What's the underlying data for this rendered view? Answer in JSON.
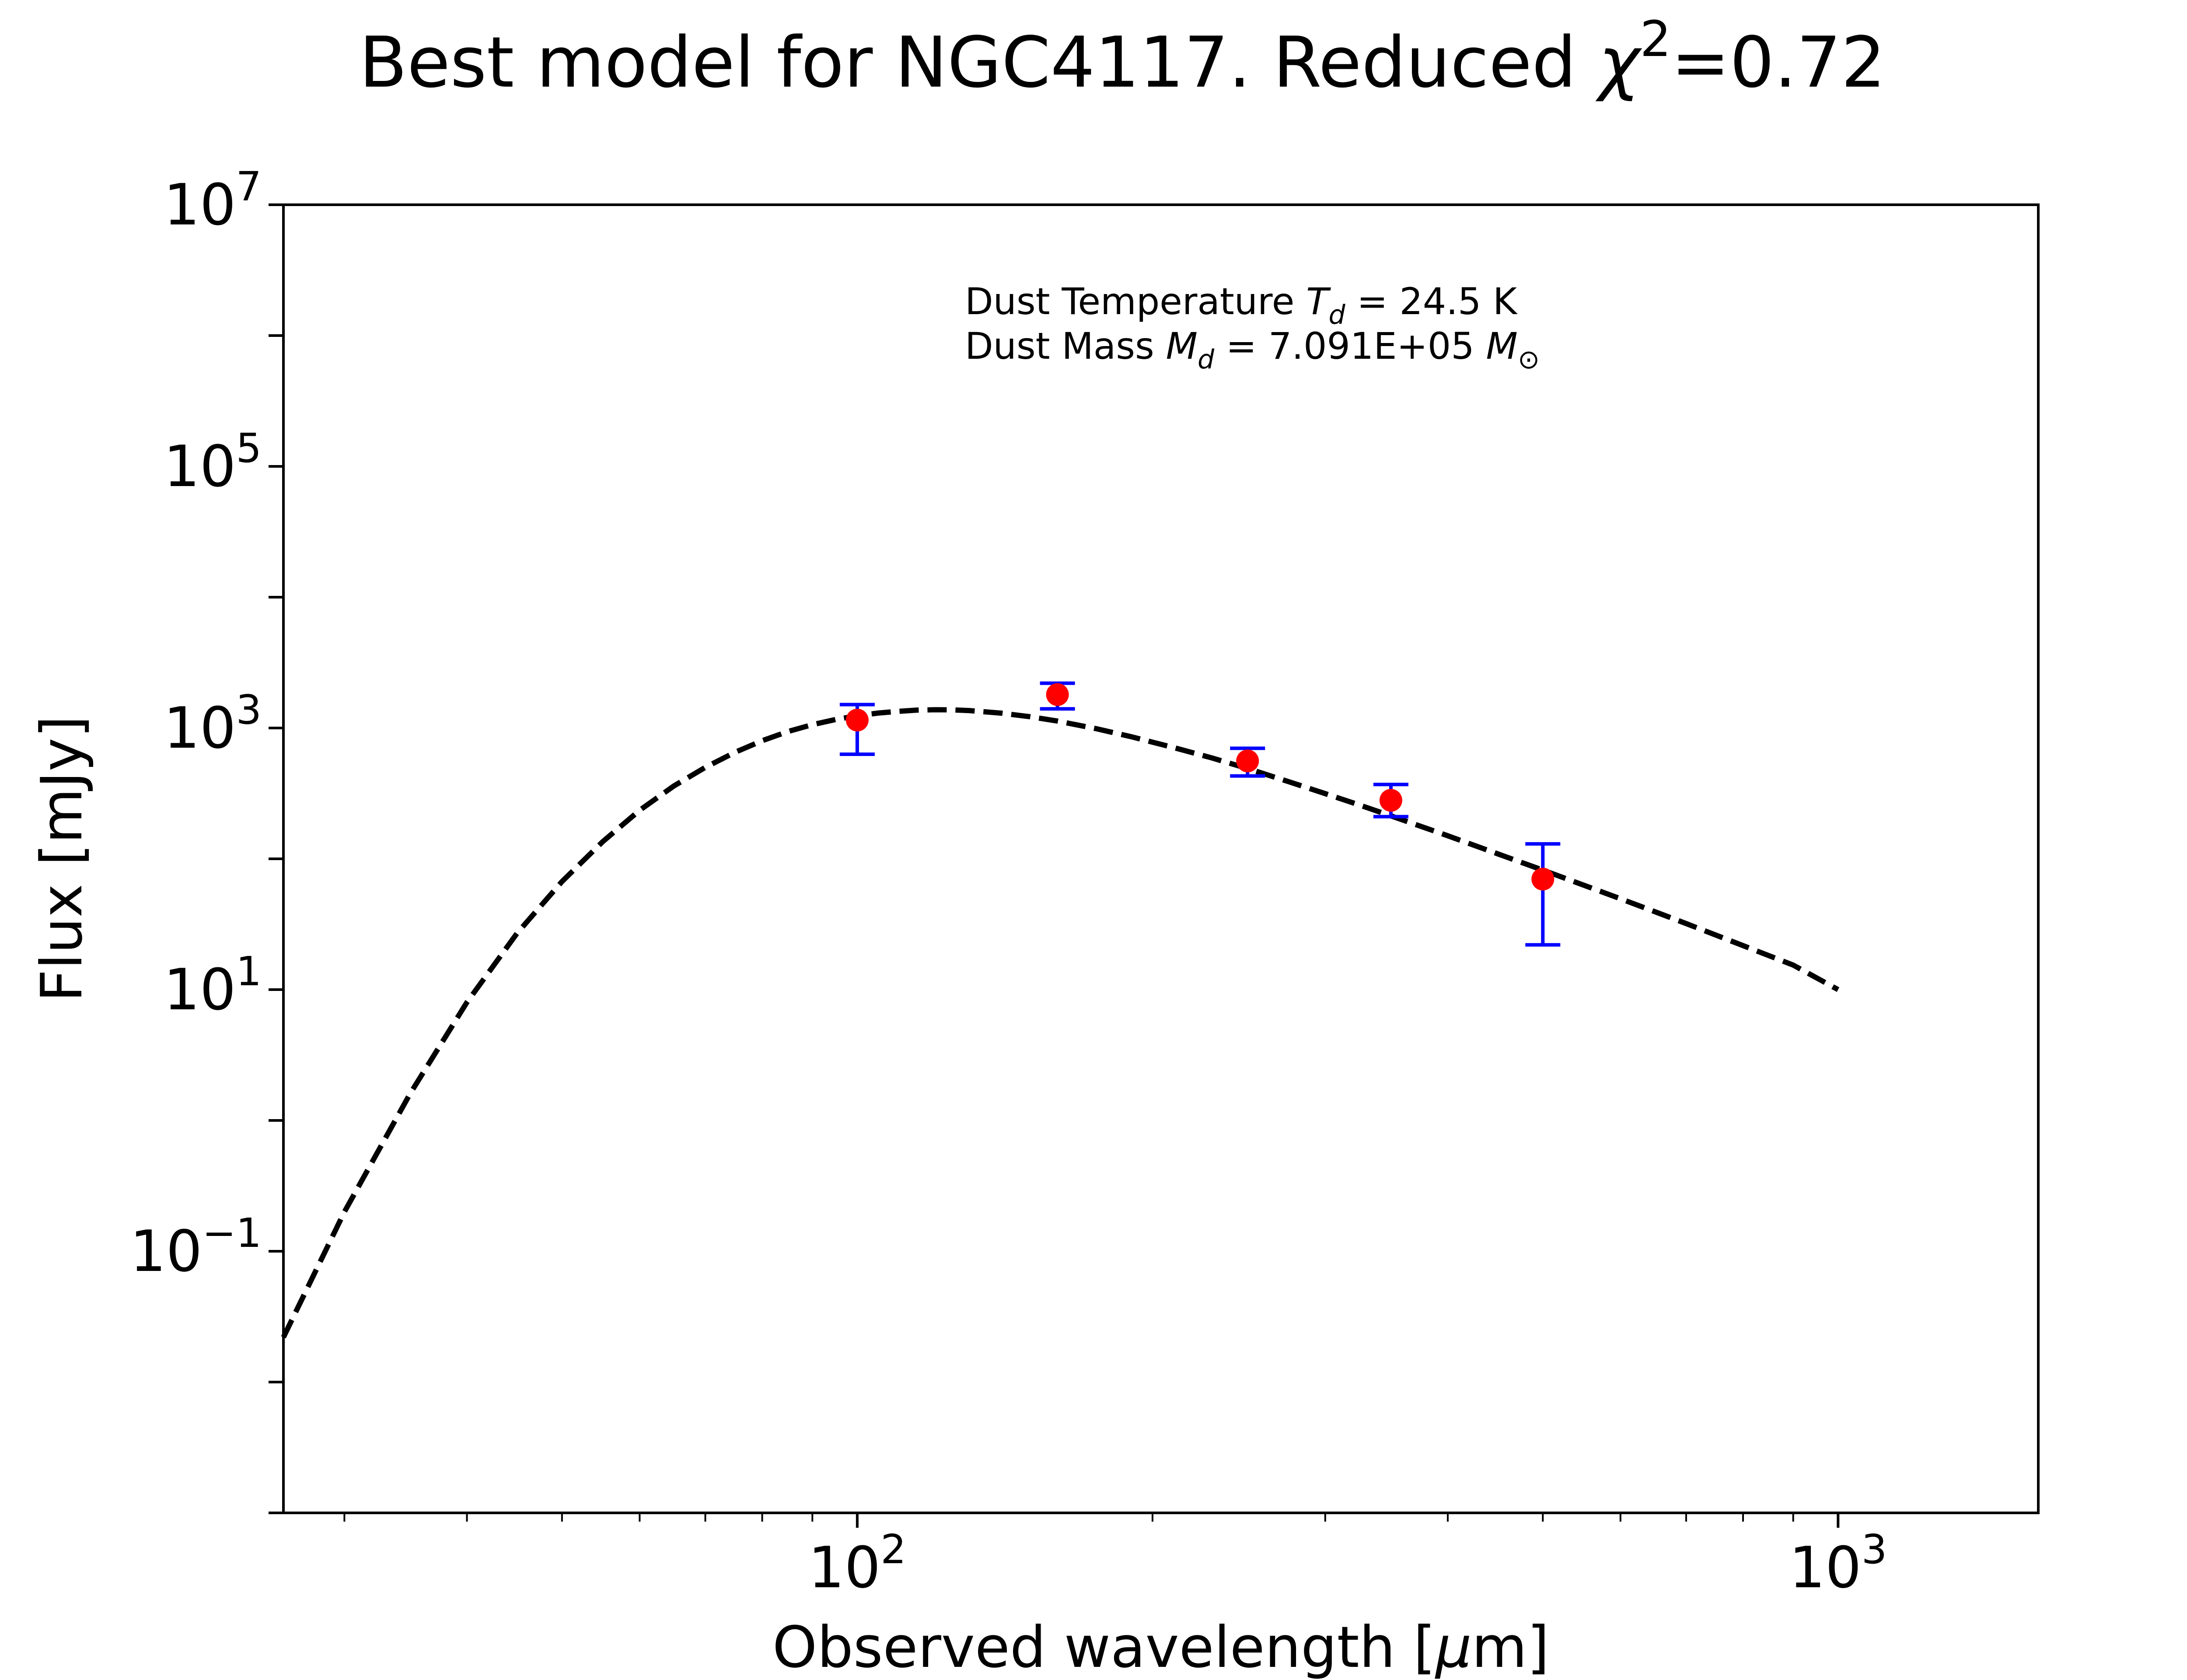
{
  "chart_data": {
    "type": "scatter",
    "title": {
      "prefix": "Best model for NGC4117. Reduced ",
      "chi_symbol": "χ",
      "chi_exponent": "2",
      "suffix": "=0.72"
    },
    "xlabel": {
      "prefix": "Observed wavelength [",
      "mu": "μ",
      "suffix": "m]"
    },
    "ylabel": "Flux [mJy]",
    "x_scale": "log",
    "y_scale": "log",
    "xlim": [
      26,
      1600
    ],
    "ylim": [
      0.001,
      10000000
    ],
    "grid": false,
    "x_ticks": [
      {
        "value": 100,
        "base": "10",
        "exp": "2"
      },
      {
        "value": 1000,
        "base": "10",
        "exp": "3"
      }
    ],
    "y_ticks": [
      {
        "value": 0.1,
        "base": "10",
        "exp": "−1"
      },
      {
        "value": 10,
        "base": "10",
        "exp": "1"
      },
      {
        "value": 1000,
        "base": "10",
        "exp": "3"
      },
      {
        "value": 100000,
        "base": "10",
        "exp": "5"
      },
      {
        "value": 10000000,
        "base": "10",
        "exp": "7"
      }
    ],
    "annotation": {
      "temp_prefix": "Dust Temperature ",
      "temp_symbol": "T",
      "temp_sub": "d",
      "temp_value": " = 24.5 K",
      "mass_prefix": "Dust Mass ",
      "mass_symbol": "M",
      "mass_sub": "d",
      "mass_value": " = 7.091E+05 ",
      "mass_unit": "M",
      "mass_unit_sub": "⊙"
    },
    "series": [
      {
        "type": "line",
        "style": "dashed",
        "color": "#000000",
        "model": "modified-blackbody",
        "T_d": 24.5,
        "x": [
          26,
          30,
          35,
          40,
          45,
          50,
          55,
          60,
          65,
          70,
          75,
          80,
          85,
          90,
          95,
          100,
          105,
          110,
          115,
          120,
          125,
          130,
          140,
          150,
          160,
          175,
          190,
          210,
          230,
          250,
          275,
          300,
          325,
          350,
          400,
          450,
          500,
          550,
          600,
          650,
          700,
          800,
          900,
          1000
        ],
        "y": [
          0.022,
          0.2,
          1.6,
          8.0,
          27,
          67,
          135,
          235,
          360,
          500,
          650,
          800,
          940,
          1060,
          1160,
          1240,
          1300,
          1340,
          1370,
          1380,
          1375,
          1360,
          1300,
          1220,
          1130,
          990,
          860,
          710,
          590,
          490,
          390,
          315,
          258,
          213,
          150,
          109,
          82,
          63,
          49.5,
          39.5,
          32.0,
          21.7,
          15.4,
          10.0
        ]
      },
      {
        "type": "scatter",
        "color": "#ff0000",
        "errorbar_color": "#0000ff",
        "x": [
          100,
          160,
          250,
          350,
          500
        ],
        "y": [
          1150,
          1800,
          560,
          280,
          70
        ],
        "y_err_low": [
          520,
          400,
          130,
          70,
          48
        ],
        "y_err_high": [
          360,
          400,
          140,
          90,
          60
        ]
      }
    ]
  }
}
